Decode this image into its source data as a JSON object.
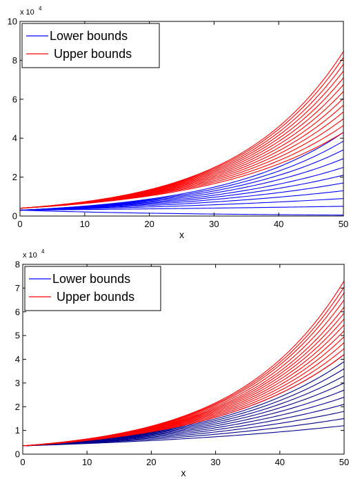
{
  "chart_data": [
    {
      "type": "line",
      "title": "",
      "xlabel": "x",
      "ylabel": "",
      "xlim": [
        0,
        50
      ],
      "ylim": [
        0,
        10
      ],
      "y_multiplier": {
        "base": "x 10",
        "exponent": "4"
      },
      "x_ticks": [
        "0",
        "10",
        "20",
        "30",
        "40",
        "50"
      ],
      "y_ticks": [
        "0",
        "2",
        "4",
        "6",
        "8",
        "10"
      ],
      "grid": false,
      "legend_position": "top-left",
      "legend": [
        {
          "label": "Lower bounds",
          "color": "#0000ff"
        },
        {
          "label": "Upper bounds",
          "color": "#ff0000"
        }
      ],
      "series_groups": [
        {
          "name": "Lower bounds",
          "color": "#0000ff",
          "start_value": 0.3,
          "end_values": [
            0.05,
            0.5,
            0.9,
            1.3,
            1.7,
            2.1,
            2.5,
            2.95,
            3.4,
            3.85,
            4.3
          ]
        },
        {
          "name": "Upper bounds",
          "color": "#ff0000",
          "start_value": 0.4,
          "end_values": [
            4.3,
            4.65,
            5.0,
            5.35,
            5.7,
            6.05,
            6.4,
            6.75,
            7.1,
            7.45,
            7.8,
            8.15,
            8.45
          ]
        }
      ]
    },
    {
      "type": "line",
      "title": "",
      "xlabel": "x",
      "ylabel": "",
      "xlim": [
        0,
        50
      ],
      "ylim": [
        0,
        8
      ],
      "y_multiplier": {
        "base": "x 10",
        "exponent": "4"
      },
      "x_ticks": [
        "0",
        "10",
        "20",
        "30",
        "40",
        "50"
      ],
      "y_ticks": [
        "0",
        "1",
        "2",
        "3",
        "4",
        "5",
        "6",
        "7",
        "8"
      ],
      "grid": false,
      "legend_position": "top-left",
      "legend": [
        {
          "label": "Lower bounds",
          "color": "#0000ff"
        },
        {
          "label": "Upper bounds",
          "color": "#ff0000"
        }
      ],
      "series_groups": [
        {
          "name": "Lower bounds",
          "color": "#00008b",
          "start_value": 0.35,
          "end_values": [
            1.2,
            1.5,
            1.8,
            2.1,
            2.4,
            2.7,
            3.0,
            3.3,
            3.6,
            3.9,
            4.2
          ]
        },
        {
          "name": "Upper bounds",
          "color": "#ff0000",
          "start_value": 0.35,
          "end_values": [
            4.2,
            4.45,
            4.7,
            4.95,
            5.2,
            5.45,
            5.7,
            5.95,
            6.2,
            6.5,
            6.8,
            7.05,
            7.3
          ]
        }
      ]
    }
  ]
}
